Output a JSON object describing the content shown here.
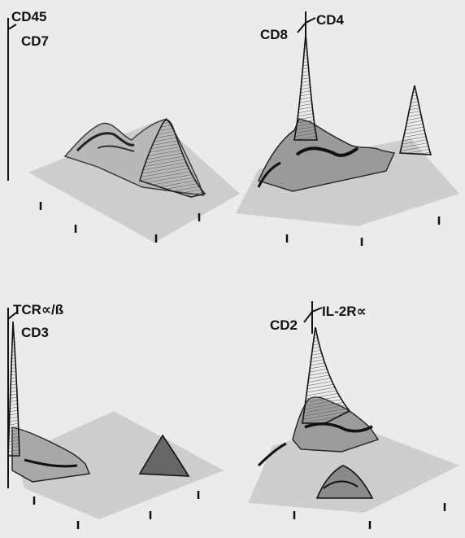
{
  "figure": {
    "panels": [
      {
        "id": "top-left",
        "labels": {
          "upper": "CD45",
          "lower": "CD7"
        }
      },
      {
        "id": "top-right",
        "labels": {
          "left": "CD8",
          "right": "CD4"
        }
      },
      {
        "id": "bottom-left",
        "labels": {
          "upper": "TCR∝/ß",
          "lower": "CD3"
        }
      },
      {
        "id": "bottom-right",
        "labels": {
          "left": "CD2",
          "right": "IL-2R∝"
        }
      }
    ]
  }
}
